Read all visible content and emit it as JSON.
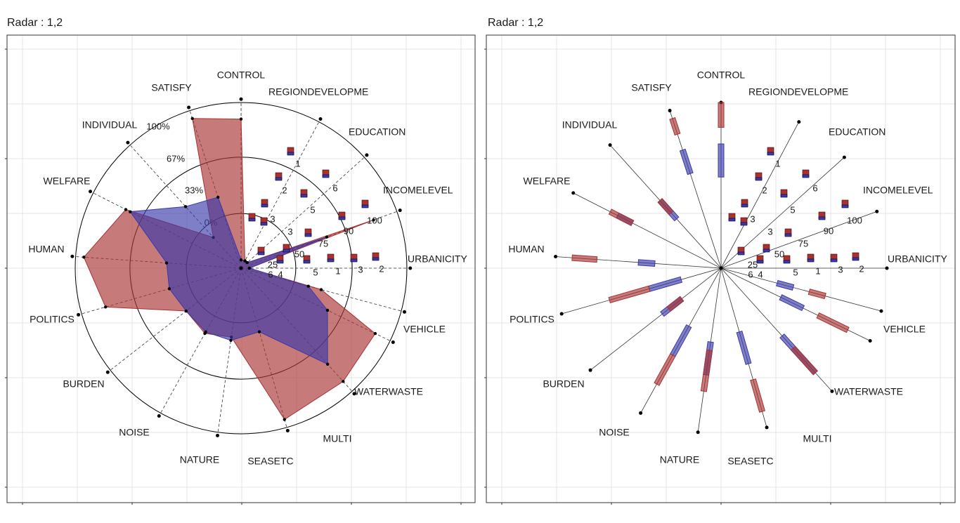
{
  "panels": [
    {
      "title": "Radar : 1,2"
    },
    {
      "title": "Radar : 1,2"
    }
  ],
  "chart_data": [
    {
      "type": "radar",
      "title": "Radar : 1,2",
      "axes": [
        "URBANICITY",
        "INCOMELEVEL",
        "EDUCATION",
        "REGIONDEVELOPME",
        "CONTROL",
        "SATISFY",
        "INDIVIDUAL",
        "WELFARE",
        "HUMAN",
        "POLITICS",
        "BURDEN",
        "NOISE",
        "NATURE",
        "SEASETC",
        "MULTI",
        "WATERWASTE",
        "VEHICLE"
      ],
      "rings": [
        "0%",
        "33%",
        "67%",
        "100%"
      ],
      "series": [
        {
          "values": [
            0.05,
            0.55,
            0.05,
            0.05,
            0.05,
            0.45,
            0.5,
            0.75,
            0.45,
            0.45,
            0.42,
            0.44,
            0.44,
            0.4,
            0.78,
            0.58,
            0.42
          ],
          "color": "#3a3aaa"
        },
        {
          "values": [
            0.05,
            0.85,
            0.05,
            0.05,
            0.9,
            0.95,
            0.25,
            0.78,
            0.95,
            0.85,
            0.42,
            0.45,
            0.42,
            0.95,
            0.92,
            0.9,
            0.5
          ],
          "color": "#a83232"
        }
      ],
      "axis_ticks": {
        "URBANICITY": [
          "4",
          "5",
          "1",
          "3",
          "2"
        ],
        "INCOMELEVEL": [
          "25",
          "50",
          "75",
          "90",
          "100"
        ],
        "EDUCATION": [
          "3",
          "5",
          "6"
        ],
        "REGIONDEVELOPME": [
          "6",
          "3",
          "2",
          "1"
        ]
      }
    },
    {
      "type": "radar-boxplot",
      "title": "Radar : 1,2",
      "axes": [
        "URBANICITY",
        "INCOMELEVEL",
        "EDUCATION",
        "REGIONDEVELOPME",
        "CONTROL",
        "SATISFY",
        "INDIVIDUAL",
        "WELFARE",
        "HUMAN",
        "POLITICS",
        "BURDEN",
        "NOISE",
        "NATURE",
        "SEASETC",
        "MULTI",
        "WATERWASTE",
        "VEHICLE"
      ],
      "boxes": [
        {
          "axis": "VEHICLE",
          "blue": [
            0.35,
            0.45
          ],
          "red": [
            0.55,
            0.65
          ]
        },
        {
          "axis": "WATERWASTE",
          "blue": [
            0.4,
            0.55
          ],
          "red": [
            0.65,
            0.85
          ]
        },
        {
          "axis": "MULTI",
          "blue": [
            0.55,
            0.85
          ],
          "red": [
            0.65,
            0.85
          ]
        },
        {
          "axis": "SEASETC",
          "blue": [
            0.4,
            0.6
          ],
          "red": [
            0.7,
            0.9
          ]
        },
        {
          "axis": "NATURE",
          "blue": [
            0.45,
            0.65
          ],
          "red": [
            0.5,
            0.75
          ]
        },
        {
          "axis": "NOISE",
          "blue": [
            0.4,
            0.6
          ],
          "red": [
            0.6,
            0.8
          ]
        },
        {
          "axis": "BURDEN",
          "blue": [
            0.3,
            0.45
          ],
          "red": [
            0.3,
            0.4
          ]
        },
        {
          "axis": "POLITICS",
          "blue": [
            0.25,
            0.45
          ],
          "red": [
            0.45,
            0.7
          ]
        },
        {
          "axis": "HUMAN",
          "blue": [
            0.4,
            0.5
          ],
          "red": [
            0.75,
            0.9
          ]
        },
        {
          "axis": "WELFARE",
          "blue": [
            0.6,
            0.7
          ],
          "red": [
            0.6,
            0.75
          ]
        },
        {
          "axis": "INDIVIDUAL",
          "blue": [
            0.4,
            0.55
          ],
          "red": [
            0.45,
            0.55
          ]
        },
        {
          "axis": "SATISFY",
          "blue": [
            0.6,
            0.75
          ],
          "red": [
            0.85,
            0.95
          ]
        },
        {
          "axis": "CONTROL",
          "blue": [
            0.55,
            0.75
          ],
          "red": [
            0.85,
            1.0
          ]
        }
      ]
    }
  ],
  "colors": {
    "blue": "#3a3aaa",
    "red": "#a83232",
    "grid": "#e6e6e6",
    "frame": "#333333"
  }
}
